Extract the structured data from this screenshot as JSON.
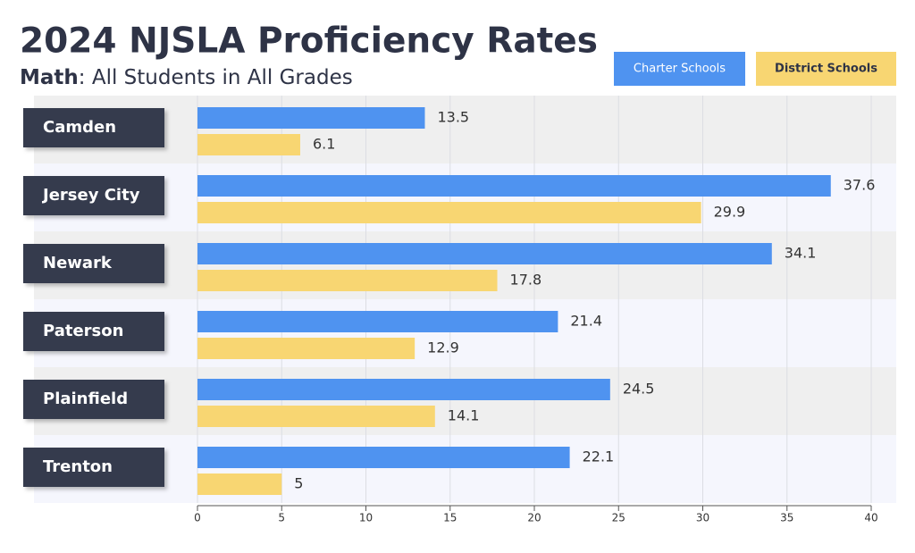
{
  "chart_data": {
    "type": "bar",
    "orientation": "horizontal",
    "title": "2024 NJSLA Proficiency Rates",
    "subtitle": {
      "emphasis": "Math",
      "text": ": All Students in All Grades"
    },
    "categories": [
      "Camden",
      "Jersey City",
      "Newark",
      "Paterson",
      "Plainfield",
      "Trenton"
    ],
    "series": [
      {
        "name": "Charter Schools",
        "color": "#4f93f0",
        "values": [
          13.5,
          37.6,
          34.1,
          21.4,
          24.5,
          22.1
        ]
      },
      {
        "name": "District Schools",
        "color": "#f8d672",
        "values": [
          6.1,
          29.9,
          17.8,
          12.9,
          14.1,
          5
        ]
      }
    ],
    "xlim": [
      0,
      40
    ],
    "xticks": [
      0,
      5,
      10,
      15,
      20,
      25,
      30,
      35,
      40
    ],
    "grid": true,
    "legend": "top-right"
  }
}
